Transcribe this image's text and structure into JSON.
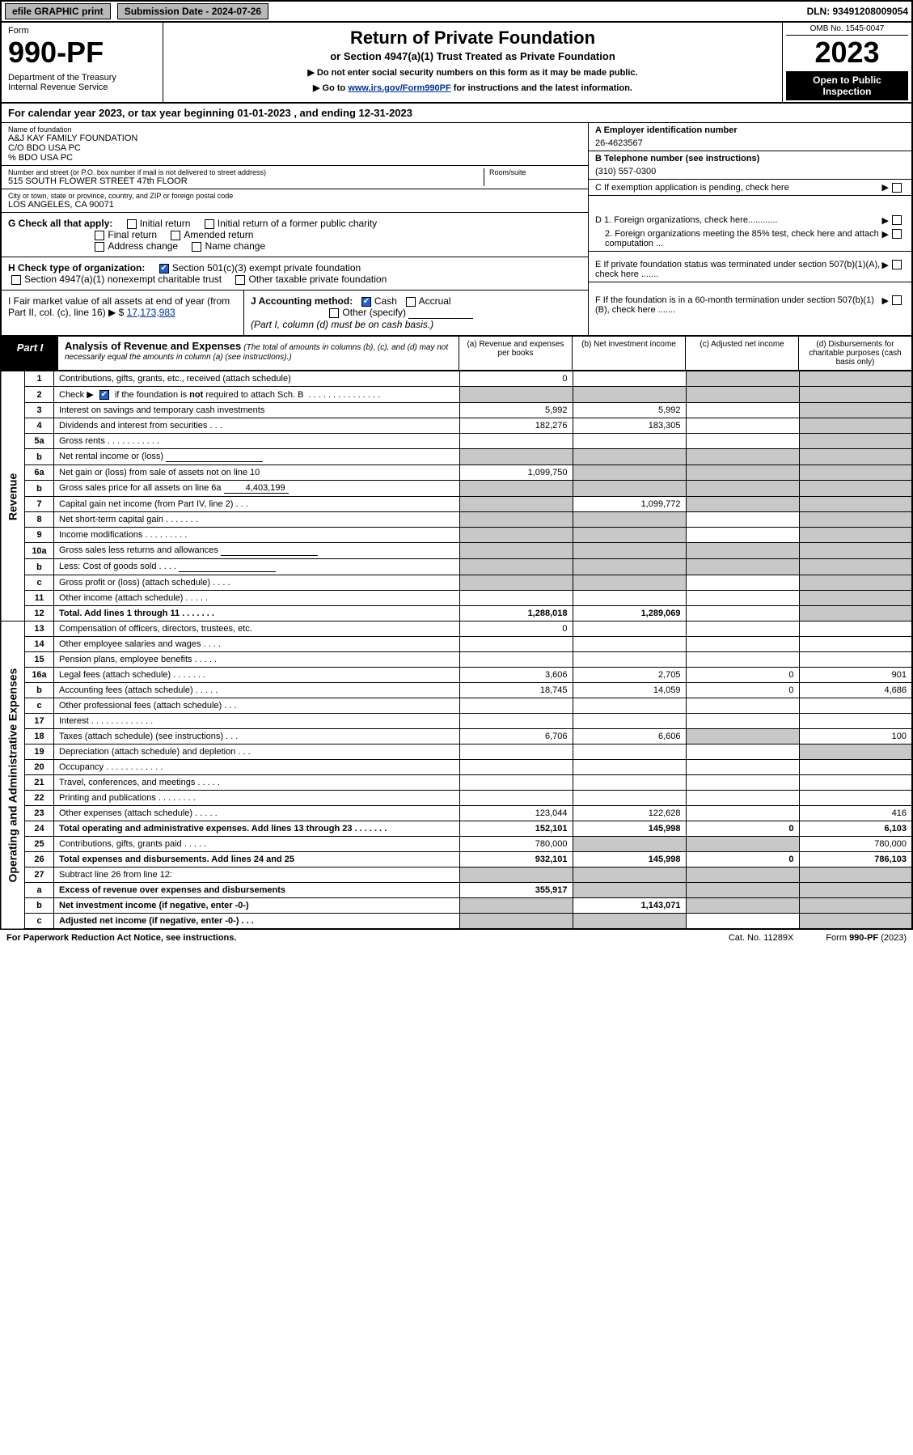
{
  "topbar": {
    "efile": "efile GRAPHIC print",
    "submission": "Submission Date - 2024-07-26",
    "dln": "DLN: 93491208009054"
  },
  "header": {
    "form_word": "Form",
    "form_no": "990-PF",
    "dept": "Department of the Treasury\nInternal Revenue Service",
    "title": "Return of Private Foundation",
    "subtitle": "or Section 4947(a)(1) Trust Treated as Private Foundation",
    "note1": "▶ Do not enter social security numbers on this form as it may be made public.",
    "note2_pre": "▶ Go to ",
    "note2_link": "www.irs.gov/Form990PF",
    "note2_post": " for instructions and the latest information.",
    "omb": "OMB No. 1545-0047",
    "year": "2023",
    "open": "Open to Public Inspection"
  },
  "calendar": "For calendar year 2023, or tax year beginning 01-01-2023          , and ending 12-31-2023",
  "name_block": {
    "label": "Name of foundation",
    "line1": "A&J KAY FAMILY FOUNDATION",
    "line2": "C/O BDO USA PC",
    "line3": "% BDO USA PC"
  },
  "street": {
    "label": "Number and street (or P.O. box number if mail is not delivered to street address)",
    "value": "515 SOUTH FLOWER STREET 47th FLOOR",
    "room_label": "Room/suite"
  },
  "city": {
    "label": "City or town, state or province, country, and ZIP or foreign postal code",
    "value": "LOS ANGELES, CA  90071"
  },
  "ein": {
    "label": "A Employer identification number",
    "value": "26-4623567"
  },
  "phone": {
    "label": "B Telephone number (see instructions)",
    "value": "(310) 557-0300"
  },
  "c_label": "C If exemption application is pending, check here",
  "d1": "D 1. Foreign organizations, check here............",
  "d2": "2. Foreign organizations meeting the 85% test, check here and attach computation ...",
  "e_label": "E  If private foundation status was terminated under section 507(b)(1)(A), check here .......",
  "f_label": "F  If the foundation is in a 60-month termination under section 507(b)(1)(B), check here .......",
  "g": {
    "label": "G Check all that apply:",
    "opts": [
      "Initial return",
      "Initial return of a former public charity",
      "Final return",
      "Amended return",
      "Address change",
      "Name change"
    ]
  },
  "h": {
    "label": "H Check type of organization:",
    "o1": "Section 501(c)(3) exempt private foundation",
    "o2": "Section 4947(a)(1) nonexempt charitable trust",
    "o3": "Other taxable private foundation"
  },
  "i": {
    "label": "I Fair market value of all assets at end of year (from Part II, col. (c), line 16)",
    "prefix": "▶ $",
    "value": "17,173,983"
  },
  "j": {
    "label": "J Accounting method:",
    "cash": "Cash",
    "accrual": "Accrual",
    "other": "Other (specify)",
    "note": "(Part I, column (d) must be on cash basis.)"
  },
  "part1": {
    "label": "Part I",
    "title": "Analysis of Revenue and Expenses",
    "note": "(The total of amounts in columns (b), (c), and (d) may not necessarily equal the amounts in column (a) (see instructions).)",
    "cols": {
      "a": "(a)  Revenue and expenses per books",
      "b": "(b)  Net investment income",
      "c": "(c)  Adjusted net income",
      "d": "(d)  Disbursements for charitable purposes (cash basis only)"
    }
  },
  "side_labels": {
    "rev": "Revenue",
    "exp": "Operating and Administrative Expenses"
  },
  "rows": [
    {
      "n": "1",
      "d": "Contributions, gifts, grants, etc., received (attach schedule)",
      "a": "0",
      "b": "",
      "c": "g",
      "dcol": "g"
    },
    {
      "n": "2",
      "d": "Check ▶ ☑ if the foundation is not required to attach Sch. B  . . . . . . . . . . . . . . . .",
      "a": "g",
      "b": "g",
      "c": "g",
      "dcol": "g",
      "checked": true
    },
    {
      "n": "3",
      "d": "Interest on savings and temporary cash investments",
      "a": "5,992",
      "b": "5,992",
      "c": "",
      "dcol": "g"
    },
    {
      "n": "4",
      "d": "Dividends and interest from securities   .  .  .",
      "a": "182,276",
      "b": "183,305",
      "c": "",
      "dcol": "g"
    },
    {
      "n": "5a",
      "d": "Gross rents   .  .  .  .  .  .  .  .  .  .  .",
      "a": "",
      "b": "",
      "c": "",
      "dcol": "g"
    },
    {
      "n": "b",
      "d": "Net rental income or (loss)  ",
      "a": "g",
      "b": "g",
      "c": "g",
      "dcol": "g",
      "inlinebox": true
    },
    {
      "n": "6a",
      "d": "Net gain or (loss) from sale of assets not on line 10",
      "a": "1,099,750",
      "b": "g",
      "c": "g",
      "dcol": "g"
    },
    {
      "n": "b",
      "d": "Gross sales price for all assets on line 6a",
      "a": "g",
      "b": "g",
      "c": "g",
      "dcol": "g",
      "inlineval": "4,403,199"
    },
    {
      "n": "7",
      "d": "Capital gain net income (from Part IV, line 2)  .  .  .",
      "a": "g",
      "b": "1,099,772",
      "c": "g",
      "dcol": "g"
    },
    {
      "n": "8",
      "d": "Net short-term capital gain  .  .  .  .  .  .  .",
      "a": "g",
      "b": "g",
      "c": "",
      "dcol": "g"
    },
    {
      "n": "9",
      "d": "Income modifications  .  .  .  .  .  .  .  .  .",
      "a": "g",
      "b": "g",
      "c": "",
      "dcol": "g"
    },
    {
      "n": "10a",
      "d": "Gross sales less returns and allowances",
      "a": "g",
      "b": "g",
      "c": "g",
      "dcol": "g",
      "inlinebox": true
    },
    {
      "n": "b",
      "d": "Less: Cost of goods sold   .  .  .  .",
      "a": "g",
      "b": "g",
      "c": "g",
      "dcol": "g",
      "inlinebox": true
    },
    {
      "n": "c",
      "d": "Gross profit or (loss) (attach schedule)   .  .  .  .",
      "a": "g",
      "b": "g",
      "c": "",
      "dcol": "g"
    },
    {
      "n": "11",
      "d": "Other income (attach schedule)   .  .  .  .  .",
      "a": "",
      "b": "",
      "c": "",
      "dcol": "g"
    },
    {
      "n": "12",
      "d": "Total. Add lines 1 through 11  .  .  .  .  .  .  .",
      "a": "1,288,018",
      "b": "1,289,069",
      "c": "",
      "dcol": "g",
      "bold": true
    }
  ],
  "exp_rows": [
    {
      "n": "13",
      "d": "Compensation of officers, directors, trustees, etc.",
      "a": "0",
      "b": "",
      "c": "",
      "dcol": ""
    },
    {
      "n": "14",
      "d": "Other employee salaries and wages   .  .  .  .",
      "a": "",
      "b": "",
      "c": "",
      "dcol": ""
    },
    {
      "n": "15",
      "d": "Pension plans, employee benefits  .  .  .  .  .",
      "a": "",
      "b": "",
      "c": "",
      "dcol": ""
    },
    {
      "n": "16a",
      "d": "Legal fees (attach schedule)  .  .  .  .  .  .  .",
      "a": "3,606",
      "b": "2,705",
      "c": "0",
      "dcol": "901"
    },
    {
      "n": "b",
      "d": "Accounting fees (attach schedule)  .  .  .  .  .",
      "a": "18,745",
      "b": "14,059",
      "c": "0",
      "dcol": "4,686"
    },
    {
      "n": "c",
      "d": "Other professional fees (attach schedule)   .  .  .",
      "a": "",
      "b": "",
      "c": "",
      "dcol": ""
    },
    {
      "n": "17",
      "d": "Interest  .  .  .  .  .  .  .  .  .  .  .  .  .",
      "a": "",
      "b": "",
      "c": "",
      "dcol": ""
    },
    {
      "n": "18",
      "d": "Taxes (attach schedule) (see instructions)   .  .  .",
      "a": "6,706",
      "b": "6,606",
      "c": "g",
      "dcol": "100"
    },
    {
      "n": "19",
      "d": "Depreciation (attach schedule) and depletion   .  .  .",
      "a": "",
      "b": "",
      "c": "",
      "dcol": "g"
    },
    {
      "n": "20",
      "d": "Occupancy  .  .  .  .  .  .  .  .  .  .  .  .",
      "a": "",
      "b": "",
      "c": "",
      "dcol": ""
    },
    {
      "n": "21",
      "d": "Travel, conferences, and meetings  .  .  .  .  .",
      "a": "",
      "b": "",
      "c": "",
      "dcol": ""
    },
    {
      "n": "22",
      "d": "Printing and publications  .  .  .  .  .  .  .  .",
      "a": "",
      "b": "",
      "c": "",
      "dcol": ""
    },
    {
      "n": "23",
      "d": "Other expenses (attach schedule)  .  .  .  .  .",
      "a": "123,044",
      "b": "122,628",
      "c": "",
      "dcol": "416"
    },
    {
      "n": "24",
      "d": "Total operating and administrative expenses. Add lines 13 through 23  .  .  .  .  .  .  .",
      "a": "152,101",
      "b": "145,998",
      "c": "0",
      "dcol": "6,103",
      "bold": true
    },
    {
      "n": "25",
      "d": "Contributions, gifts, grants paid   .  .  .  .  .",
      "a": "780,000",
      "b": "g",
      "c": "g",
      "dcol": "780,000"
    },
    {
      "n": "26",
      "d": "Total expenses and disbursements. Add lines 24 and 25",
      "a": "932,101",
      "b": "145,998",
      "c": "0",
      "dcol": "786,103",
      "bold": true
    },
    {
      "n": "27",
      "d": "Subtract line 26 from line 12:",
      "a": "g",
      "b": "g",
      "c": "g",
      "dcol": "g",
      "bold": false
    },
    {
      "n": "a",
      "d": "Excess of revenue over expenses and disbursements",
      "a": "355,917",
      "b": "g",
      "c": "g",
      "dcol": "g",
      "bold": true
    },
    {
      "n": "b",
      "d": "Net investment income (if negative, enter -0-)",
      "a": "g",
      "b": "1,143,071",
      "c": "g",
      "dcol": "g",
      "bold": true
    },
    {
      "n": "c",
      "d": "Adjusted net income (if negative, enter -0-)  .  .  .",
      "a": "g",
      "b": "g",
      "c": "",
      "dcol": "g",
      "bold": true
    }
  ],
  "footer": {
    "pra": "For Paperwork Reduction Act Notice, see instructions.",
    "cat": "Cat. No. 11289X",
    "form": "Form 990-PF (2023)"
  }
}
